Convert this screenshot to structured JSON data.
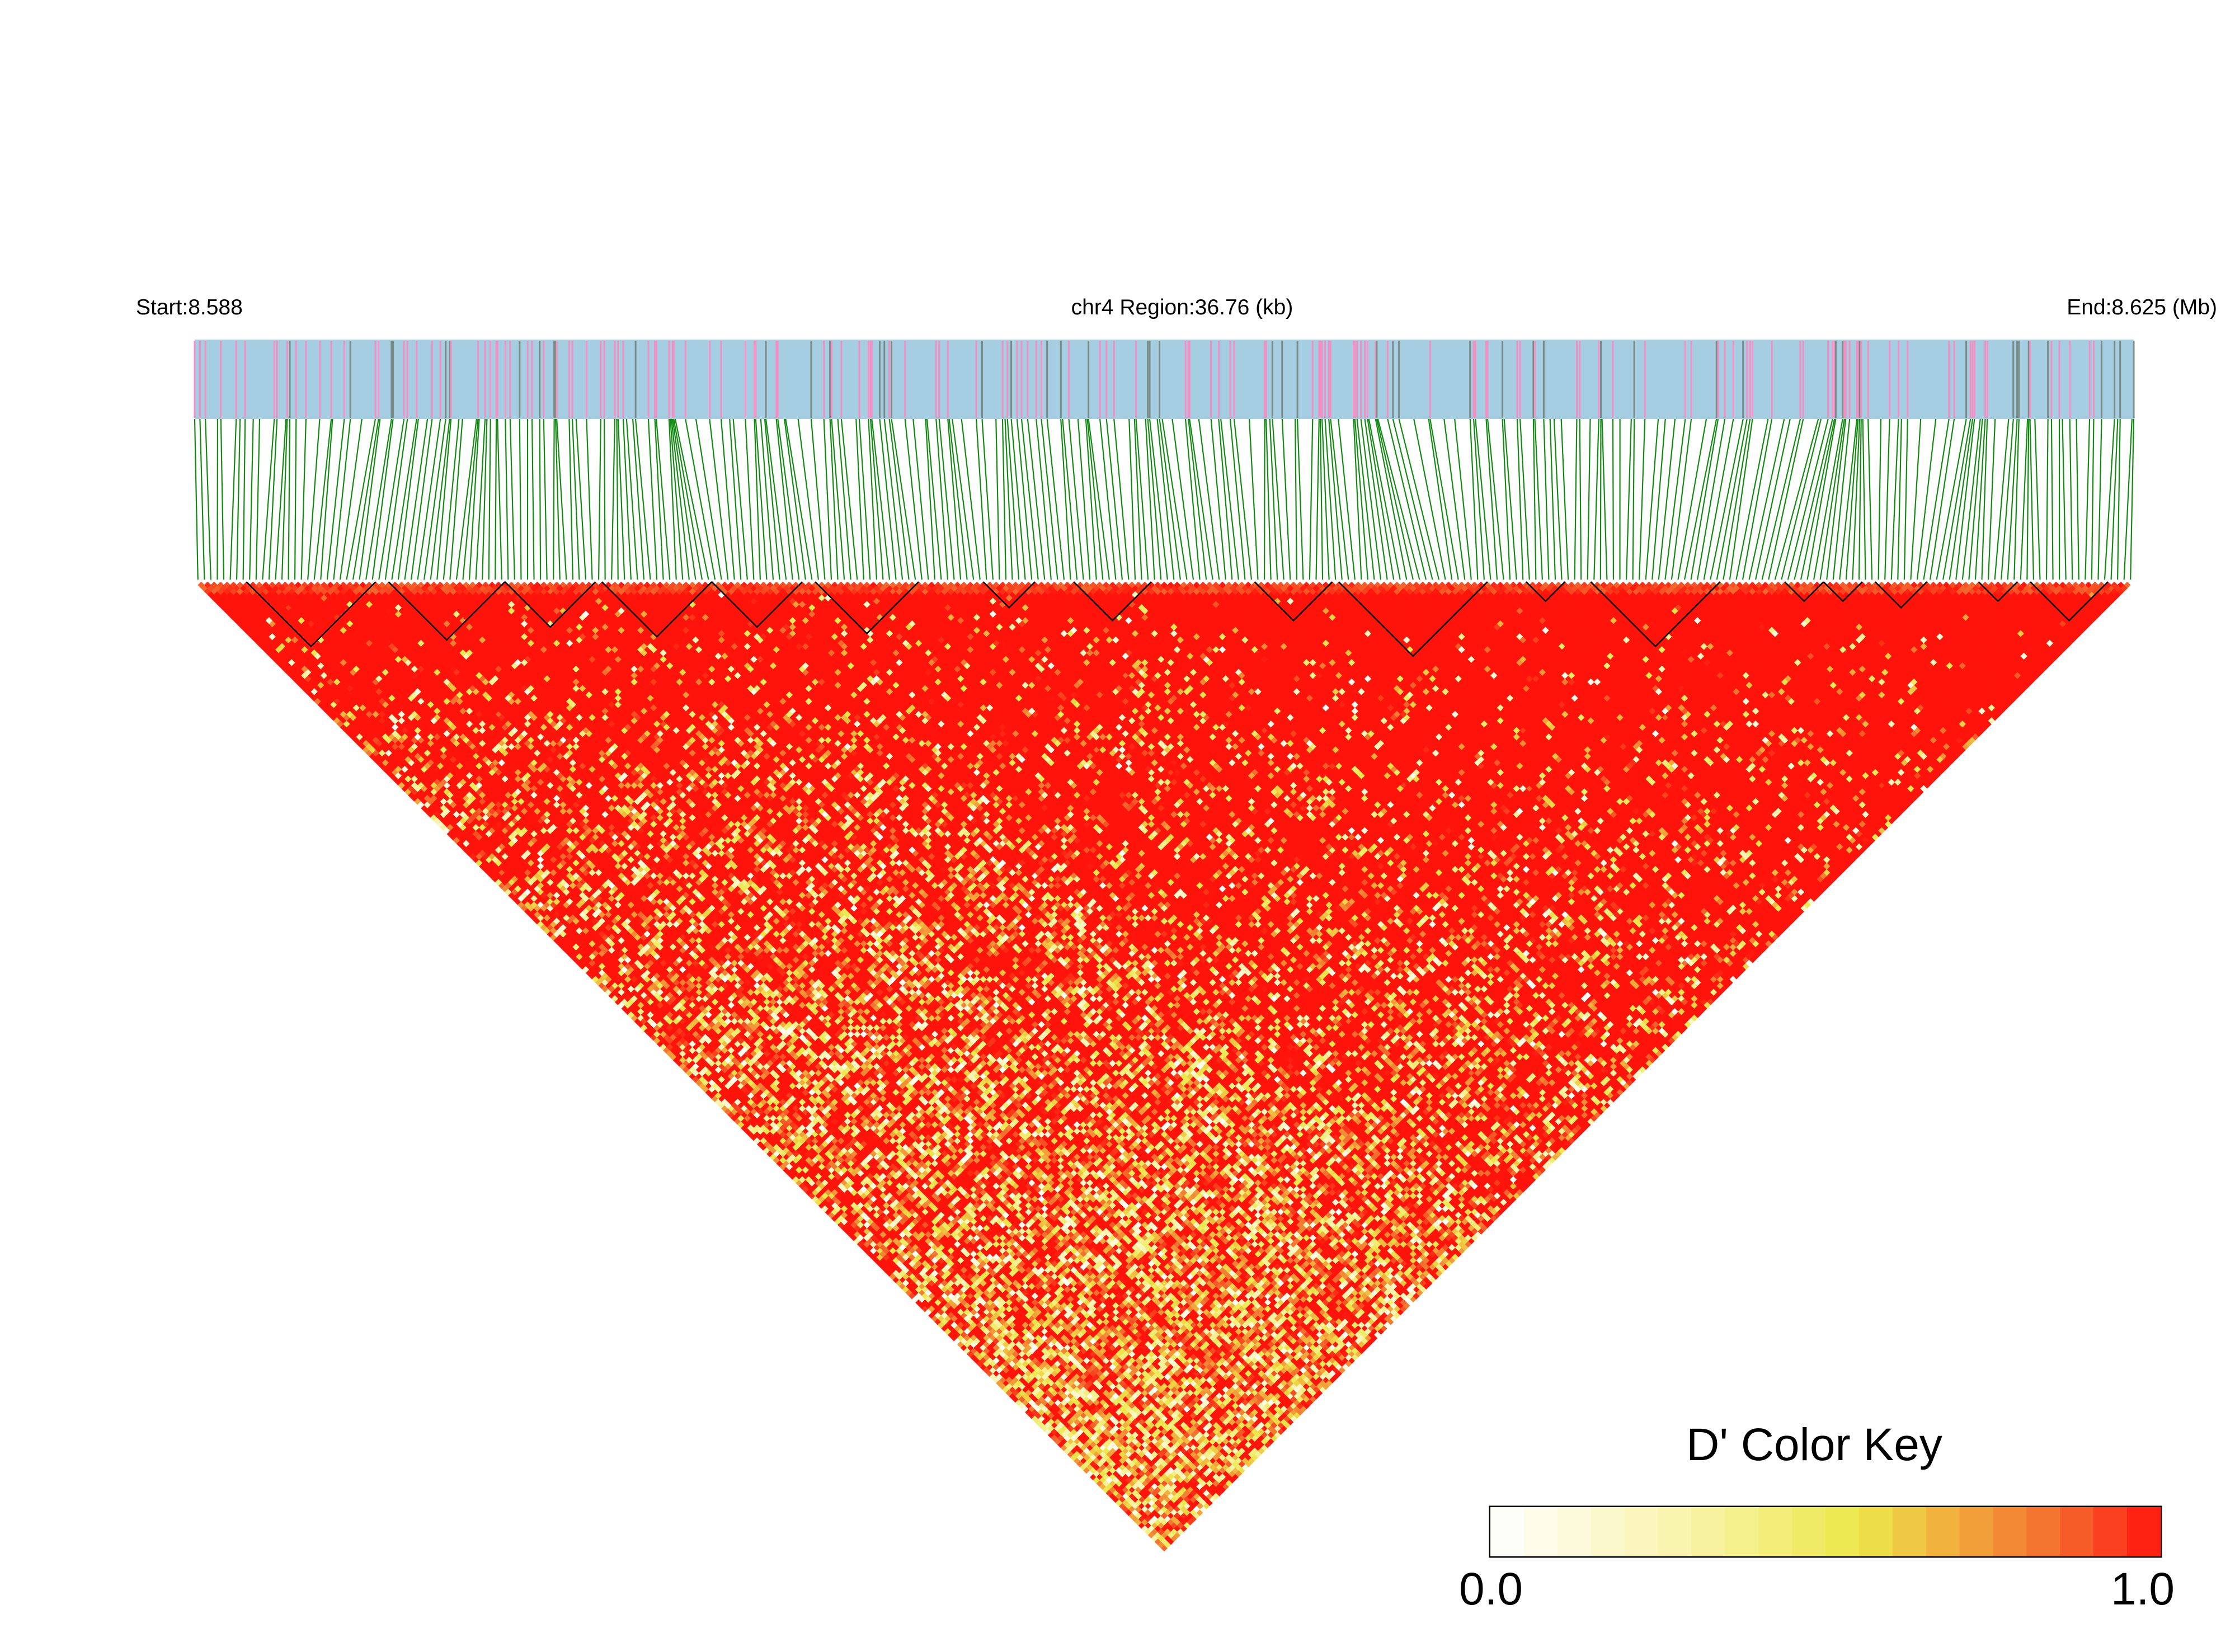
{
  "chart_data": {
    "type": "heatmap",
    "subtype": "linkage-disequilibrium-triangle",
    "chromosome": "chr4",
    "header": {
      "start_label": "Start:8.588",
      "region_label": "chr4 Region:36.76 (kb)",
      "end_label": "End:8.625 (Mb)"
    },
    "region_start_mb": 8.588,
    "region_end_mb": 8.625,
    "region_length_kb": 36.76,
    "snp_count_approx": 300,
    "metric": "D'",
    "value_range": [
      0.0,
      1.0
    ],
    "haplotype_blocks_visible": 20,
    "color_key": {
      "title": "D' Color Key",
      "min_label": "0.0",
      "max_label": "1.0",
      "gradient": [
        "#ffffff",
        "#f7f39e",
        "#eee84a",
        "#f2a93b",
        "#f36a2e",
        "#ff1a10"
      ]
    },
    "colors": {
      "snp_track": "#a6cee3",
      "snp_marker_pink": "#f38fc2",
      "snp_marker_grey": "#7a8a85",
      "connector_lines": "#128a12",
      "block_outline": "#000000",
      "high_ld": "#ff0000"
    }
  }
}
